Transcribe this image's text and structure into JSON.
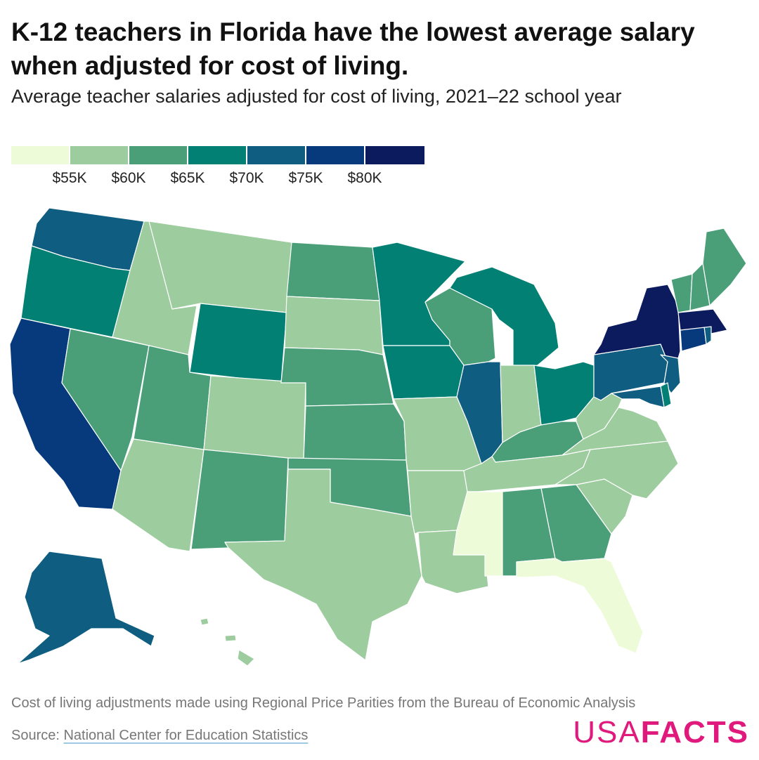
{
  "title": "K-12 teachers in Florida have the lowest average salary when adjusted for cost of living.",
  "subtitle": "Average teacher salaries adjusted for cost of living, 2021–22 school year",
  "legend": {
    "colors": [
      "#eefbd8",
      "#9dcc9e",
      "#4a9f79",
      "#028074",
      "#0f5d80",
      "#063a7d",
      "#0c1a5e"
    ],
    "ticks": [
      "$55K",
      "$60K",
      "$65K",
      "$70K",
      "$75K",
      "$80K"
    ]
  },
  "chart_data": {
    "type": "choropleth",
    "region": "United States",
    "bins": [
      {
        "label": "< $55K",
        "color": "#eefbd8"
      },
      {
        "label": "$55K–$60K",
        "color": "#9dcc9e"
      },
      {
        "label": "$60K–$65K",
        "color": "#4a9f79"
      },
      {
        "label": "$65K–$70K",
        "color": "#028074"
      },
      {
        "label": "$70K–$75K",
        "color": "#0f5d80"
      },
      {
        "label": "$75K–$80K",
        "color": "#063a7d"
      },
      {
        "label": "> $80K",
        "color": "#0c1a5e"
      }
    ],
    "states": [
      {
        "state": "WA",
        "bin": 4
      },
      {
        "state": "OR",
        "bin": 3
      },
      {
        "state": "CA",
        "bin": 5
      },
      {
        "state": "NV",
        "bin": 2
      },
      {
        "state": "ID",
        "bin": 1
      },
      {
        "state": "MT",
        "bin": 1
      },
      {
        "state": "WY",
        "bin": 3
      },
      {
        "state": "UT",
        "bin": 2
      },
      {
        "state": "AZ",
        "bin": 1
      },
      {
        "state": "CO",
        "bin": 1
      },
      {
        "state": "NM",
        "bin": 2
      },
      {
        "state": "ND",
        "bin": 2
      },
      {
        "state": "SD",
        "bin": 1
      },
      {
        "state": "NE",
        "bin": 2
      },
      {
        "state": "KS",
        "bin": 2
      },
      {
        "state": "OK",
        "bin": 2
      },
      {
        "state": "TX",
        "bin": 1
      },
      {
        "state": "MN",
        "bin": 3
      },
      {
        "state": "IA",
        "bin": 3
      },
      {
        "state": "MO",
        "bin": 1
      },
      {
        "state": "AR",
        "bin": 1
      },
      {
        "state": "LA",
        "bin": 1
      },
      {
        "state": "WI",
        "bin": 2
      },
      {
        "state": "IL",
        "bin": 4
      },
      {
        "state": "MI",
        "bin": 3
      },
      {
        "state": "IN",
        "bin": 1
      },
      {
        "state": "OH",
        "bin": 3
      },
      {
        "state": "KY",
        "bin": 2
      },
      {
        "state": "TN",
        "bin": 1
      },
      {
        "state": "MS",
        "bin": 0
      },
      {
        "state": "AL",
        "bin": 2
      },
      {
        "state": "GA",
        "bin": 2
      },
      {
        "state": "FL",
        "bin": 0
      },
      {
        "state": "SC",
        "bin": 1
      },
      {
        "state": "NC",
        "bin": 1
      },
      {
        "state": "VA",
        "bin": 1
      },
      {
        "state": "WV",
        "bin": 1
      },
      {
        "state": "PA",
        "bin": 4
      },
      {
        "state": "NY",
        "bin": 6
      },
      {
        "state": "NJ",
        "bin": 4
      },
      {
        "state": "DE",
        "bin": 3
      },
      {
        "state": "MD",
        "bin": 4
      },
      {
        "state": "CT",
        "bin": 5
      },
      {
        "state": "RI",
        "bin": 4
      },
      {
        "state": "MA",
        "bin": 6
      },
      {
        "state": "VT",
        "bin": 2
      },
      {
        "state": "NH",
        "bin": 2
      },
      {
        "state": "ME",
        "bin": 2
      },
      {
        "state": "AK",
        "bin": 4
      },
      {
        "state": "HI",
        "bin": 1
      }
    ]
  },
  "footer": {
    "note": "Cost of living adjustments made using Regional Price Parities from the Bureau of Economic Analysis",
    "source_prefix": "Source: ",
    "source_link": "National Center for Education Statistics"
  },
  "logo": {
    "usa": "USA",
    "facts": "FACTS"
  }
}
